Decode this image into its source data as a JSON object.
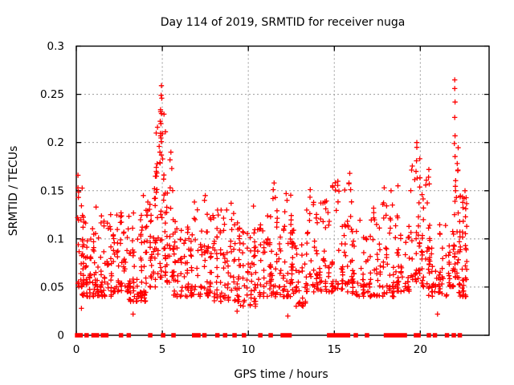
{
  "chart_data": {
    "type": "scatter",
    "title": "Day 114 of 2019, SRMTID for receiver nuga",
    "xlabel": "GPS time / hours",
    "ylabel": "SRMTID / TECUs",
    "xlim": [
      0,
      24
    ],
    "ylim": [
      0,
      0.3
    ],
    "xticks": [
      0,
      5,
      10,
      15,
      20
    ],
    "xtick_labels": [
      "0",
      "5",
      "10",
      "15",
      "20"
    ],
    "yticks": [
      0,
      0.05,
      0.1,
      0.15,
      0.2,
      0.25,
      0.3
    ],
    "ytick_labels": [
      "0",
      "0.05",
      "0.1",
      "0.15",
      "0.2",
      "0.25",
      "0.3"
    ],
    "grid": true,
    "grid_color": "#9a9a9a",
    "border_color": "#000000",
    "background_color": "#ffffff",
    "legend": "none",
    "series": [
      {
        "name": "srmtid-values",
        "marker": "plus",
        "color": "#ff0000",
        "seed": 114,
        "points": [
          [
            0.1,
            0.166
          ],
          [
            0.1,
            0.153
          ],
          [
            0.12,
            0.143
          ],
          [
            0.08,
            0.122
          ],
          [
            0.3,
            0.028
          ],
          [
            1.15,
            0.133
          ],
          [
            2.6,
            0.127
          ],
          [
            3.3,
            0.022
          ],
          [
            3.9,
            0.145
          ],
          [
            4.95,
            0.259
          ],
          [
            4.93,
            0.249
          ],
          [
            4.97,
            0.246
          ],
          [
            4.9,
            0.234
          ],
          [
            4.95,
            0.23
          ],
          [
            4.88,
            0.222
          ],
          [
            5.0,
            0.209
          ],
          [
            4.9,
            0.207
          ],
          [
            4.82,
            0.196
          ],
          [
            4.86,
            0.19
          ],
          [
            4.95,
            0.187
          ],
          [
            5.02,
            0.183
          ],
          [
            4.7,
            0.178
          ],
          [
            4.65,
            0.17
          ],
          [
            4.6,
            0.165
          ],
          [
            5.08,
            0.162
          ],
          [
            4.55,
            0.152
          ],
          [
            5.5,
            0.19
          ],
          [
            5.45,
            0.182
          ],
          [
            5.55,
            0.173
          ],
          [
            7.5,
            0.145
          ],
          [
            7.45,
            0.14
          ],
          [
            9.0,
            0.137
          ],
          [
            9.35,
            0.025
          ],
          [
            10.3,
            0.134
          ],
          [
            11.5,
            0.158
          ],
          [
            11.45,
            0.151
          ],
          [
            12.2,
            0.147
          ],
          [
            12.25,
            0.14
          ],
          [
            12.3,
            0.02
          ],
          [
            13.6,
            0.151
          ],
          [
            14.9,
            0.155
          ],
          [
            15.9,
            0.168
          ],
          [
            15.85,
            0.158
          ],
          [
            15.95,
            0.151
          ],
          [
            17.9,
            0.153
          ],
          [
            18.3,
            0.15
          ],
          [
            18.7,
            0.155
          ],
          [
            19.8,
            0.2
          ],
          [
            19.8,
            0.195
          ],
          [
            19.78,
            0.181
          ],
          [
            19.75,
            0.17
          ],
          [
            19.82,
            0.163
          ],
          [
            20.1,
            0.146
          ],
          [
            20.5,
            0.172
          ],
          [
            20.48,
            0.164
          ],
          [
            20.52,
            0.157
          ],
          [
            21.0,
            0.022
          ],
          [
            22.0,
            0.265
          ],
          [
            22.0,
            0.256
          ],
          [
            22.02,
            0.242
          ],
          [
            22.0,
            0.226
          ],
          [
            22.02,
            0.207
          ],
          [
            21.98,
            0.199
          ],
          [
            22.05,
            0.15
          ],
          [
            22.1,
            0.143
          ],
          [
            22.6,
            0.15
          ],
          [
            22.55,
            0.142
          ],
          [
            22.62,
            0.072
          ]
        ],
        "clusters": [
          [
            0.05,
            0.4,
            22,
            0.05,
            0.155,
            1.7
          ],
          [
            0.3,
            1.1,
            55,
            0.04,
            0.125,
            1.7
          ],
          [
            1.0,
            2.1,
            65,
            0.04,
            0.13,
            1.7
          ],
          [
            2.1,
            3.1,
            55,
            0.045,
            0.125,
            1.7
          ],
          [
            3.0,
            4.1,
            65,
            0.035,
            0.13,
            1.7
          ],
          [
            4.0,
            4.65,
            40,
            0.05,
            0.15,
            1.6
          ],
          [
            4.6,
            5.25,
            50,
            0.06,
            0.235,
            1.9
          ],
          [
            5.2,
            5.7,
            28,
            0.055,
            0.175,
            1.8
          ],
          [
            5.6,
            6.6,
            50,
            0.04,
            0.125,
            1.7
          ],
          [
            6.6,
            7.9,
            70,
            0.04,
            0.14,
            1.7
          ],
          [
            7.9,
            9.5,
            80,
            0.035,
            0.13,
            1.7
          ],
          [
            9.4,
            10.7,
            65,
            0.03,
            0.115,
            1.7
          ],
          [
            10.6,
            11.4,
            42,
            0.04,
            0.125,
            1.7
          ],
          [
            11.3,
            12.6,
            68,
            0.04,
            0.15,
            1.8
          ],
          [
            12.5,
            13.4,
            42,
            0.03,
            0.11,
            1.7
          ],
          [
            13.3,
            14.5,
            55,
            0.045,
            0.145,
            1.8
          ],
          [
            14.4,
            16.1,
            85,
            0.045,
            0.16,
            1.8
          ],
          [
            16.0,
            17.2,
            52,
            0.04,
            0.12,
            1.7
          ],
          [
            17.2,
            18.7,
            68,
            0.04,
            0.15,
            1.8
          ],
          [
            18.6,
            19.4,
            40,
            0.045,
            0.125,
            1.7
          ],
          [
            19.4,
            20.45,
            55,
            0.05,
            0.185,
            1.8
          ],
          [
            20.4,
            21.6,
            55,
            0.04,
            0.13,
            1.7
          ],
          [
            21.6,
            22.0,
            22,
            0.05,
            0.125,
            1.7
          ],
          [
            21.95,
            22.25,
            26,
            0.06,
            0.2,
            2.0
          ],
          [
            22.2,
            22.75,
            50,
            0.04,
            0.145,
            1.7
          ]
        ]
      },
      {
        "name": "zero-flags",
        "marker": "filled-square",
        "color": "#ff0000",
        "y": 0,
        "x_values": [
          0.05,
          0.25,
          0.6,
          1.0,
          1.2,
          1.55,
          1.75,
          2.6,
          3.05,
          4.3,
          5.05,
          5.65,
          6.85,
          7.0,
          7.1,
          7.45,
          8.2,
          8.65,
          9.2,
          9.75,
          10.7,
          11.3,
          12.0,
          12.1,
          12.2,
          12.3,
          12.4,
          14.7,
          14.9,
          15.1,
          15.35,
          15.55,
          15.8,
          16.25,
          16.9,
          18.0,
          18.15,
          18.3,
          18.45,
          18.6,
          18.85,
          19.1,
          19.75,
          19.9,
          20.5,
          20.85,
          21.55,
          21.95,
          22.3
        ]
      }
    ]
  }
}
